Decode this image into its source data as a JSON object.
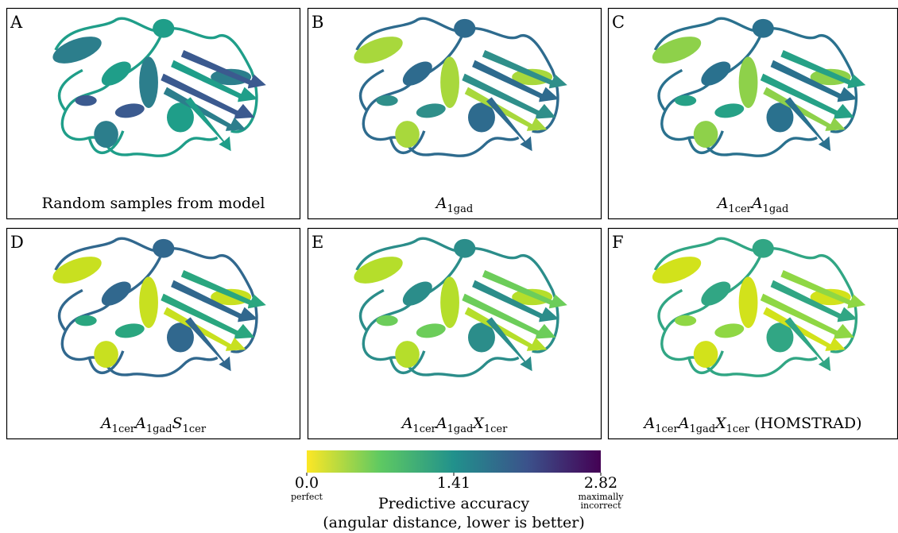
{
  "panels": [
    {
      "letter": "A",
      "caption": [
        {
          "text": "Random samples from model"
        }
      ]
    },
    {
      "letter": "B",
      "caption": [
        {
          "text": "A",
          "sub": "1gad"
        }
      ]
    },
    {
      "letter": "C",
      "caption": [
        {
          "text": "A",
          "sub": "1cer"
        },
        {
          "text": "A",
          "sub": "1gad"
        }
      ]
    },
    {
      "letter": "D",
      "caption": [
        {
          "text": "A",
          "sub": "1cer"
        },
        {
          "text": "A",
          "sub": "1gad"
        },
        {
          "text": "S",
          "sub": "1cer"
        }
      ]
    },
    {
      "letter": "E",
      "caption": [
        {
          "text": "A",
          "sub": "1cer"
        },
        {
          "text": "A",
          "sub": "1gad"
        },
        {
          "text": "X",
          "sub": "1cer"
        }
      ]
    },
    {
      "letter": "F",
      "caption": [
        {
          "text": "A",
          "sub": "1cer"
        },
        {
          "text": "A",
          "sub": "1gad"
        },
        {
          "text": "X",
          "sub": "1cer"
        },
        {
          "text": "(HOMSTRAD)"
        }
      ]
    }
  ],
  "colorbar": {
    "range": [
      0,
      2.82
    ],
    "ticks": [
      {
        "value": 0,
        "label": "0.0"
      },
      1.41,
      2.82
    ],
    "min_note": "perfect",
    "max_note": [
      "maximally",
      "incorrect"
    ],
    "colormap": [
      "#fde725",
      "#5ec962",
      "#21918c",
      "#3b528b",
      "#440154"
    ],
    "label": [
      "Predictive accuracy",
      "(angular distance, lower is better)"
    ]
  }
}
